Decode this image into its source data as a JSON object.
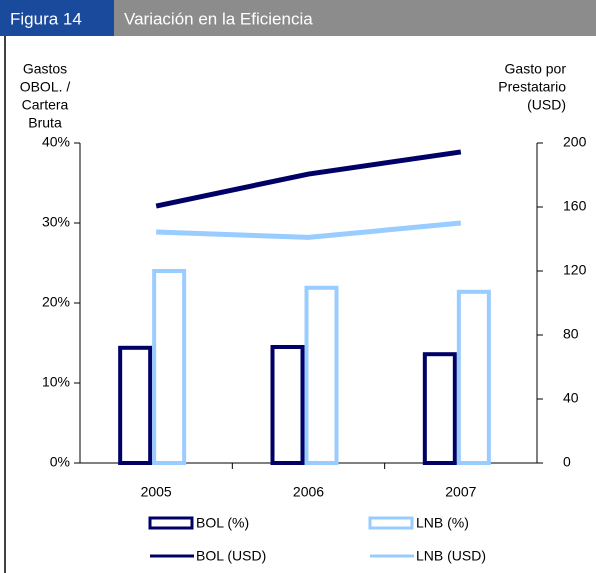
{
  "header": {
    "figure": "Figura 14",
    "title": "Variación en la Eficiencia"
  },
  "chart_data": {
    "type": "bar",
    "y_label": [
      "Gastos",
      "OBOL. /",
      "Cartera",
      "Bruta"
    ],
    "y2_label": [
      "Gasto por",
      "Prestatario",
      "(USD)"
    ],
    "categories": [
      "2005",
      "2006",
      "2007"
    ],
    "ylim": [
      0,
      40
    ],
    "yticks": [
      {
        "value": 0,
        "label": "0%"
      },
      {
        "value": 10,
        "label": "10%"
      },
      {
        "value": 20,
        "label": "20%"
      },
      {
        "value": 30,
        "label": "30%"
      },
      {
        "value": 40,
        "label": "40%"
      }
    ],
    "y2lim": [
      0,
      200
    ],
    "y2ticks": [
      0,
      40,
      80,
      120,
      160,
      200
    ],
    "series": [
      {
        "name": "BOL (%)",
        "type": "bar",
        "color": "#000066",
        "values": [
          14.4,
          14.5,
          13.6
        ]
      },
      {
        "name": "LNB (%)",
        "type": "bar",
        "color": "#99ccff",
        "values": [
          24.0,
          21.9,
          21.4
        ]
      },
      {
        "name": "BOL (USD)",
        "type": "line",
        "axis": "y2",
        "color": "#000066",
        "values": [
          160.6,
          180.6,
          194.4
        ]
      },
      {
        "name": "LNB (USD)",
        "type": "line",
        "axis": "y2",
        "color": "#99ccff",
        "values": [
          144.4,
          141,
          150
        ]
      }
    ]
  }
}
